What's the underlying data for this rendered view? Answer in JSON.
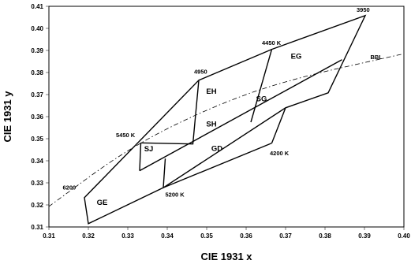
{
  "chart_data": {
    "type": "scatter",
    "title": "",
    "xlabel": "CIE 1931 x",
    "ylabel": "CIE 1931 y",
    "xlim": [
      0.31,
      0.4
    ],
    "ylim": [
      0.31,
      0.41
    ],
    "x_ticks": [
      "0.31",
      "0.32",
      "0.33",
      "0.34",
      "0.35",
      "0.36",
      "0.37",
      "0.38",
      "0.39",
      "0.40"
    ],
    "y_ticks": [
      "0.31",
      "0.32",
      "0.33",
      "0.34",
      "0.35",
      "0.36",
      "0.37",
      "0.38",
      "0.39",
      "0.40",
      "0.41"
    ],
    "grid": false,
    "series": [
      {
        "name": "BBL",
        "style": "dash-dot",
        "points": [
          [
            0.31,
            0.3193
          ],
          [
            0.33,
            0.3455
          ],
          [
            0.35,
            0.3635
          ],
          [
            0.37,
            0.3765
          ],
          [
            0.4,
            0.3885
          ]
        ]
      }
    ],
    "bins_outline": [
      {
        "points": [
          [
            0.319,
            0.3233
          ],
          [
            0.348,
            0.3765
          ],
          [
            0.3665,
            0.3905
          ],
          [
            0.3902,
            0.4058
          ],
          [
            0.3808,
            0.3708
          ],
          [
            0.37,
            0.364
          ],
          [
            0.339,
            0.3278
          ],
          [
            0.32,
            0.3115
          ]
        ]
      }
    ],
    "bin_dividers": [
      {
        "points": [
          [
            0.333,
            0.3355
          ],
          [
            0.3843,
            0.3858
          ]
        ]
      },
      {
        "points": [
          [
            0.3333,
            0.3481
          ],
          [
            0.3465,
            0.3476
          ],
          [
            0.348,
            0.3765
          ]
        ]
      },
      {
        "points": [
          [
            0.339,
            0.3278
          ],
          [
            0.3395,
            0.341
          ]
        ]
      },
      {
        "points": [
          [
            0.333,
            0.3355
          ],
          [
            0.3333,
            0.3481
          ]
        ]
      },
      {
        "points": [
          [
            0.3612,
            0.3575
          ],
          [
            0.3665,
            0.3905
          ]
        ]
      },
      {
        "points": [
          [
            0.3665,
            0.348
          ],
          [
            0.37,
            0.364
          ]
        ]
      },
      {
        "points": [
          [
            0.339,
            0.3278
          ],
          [
            0.3665,
            0.348
          ]
        ]
      }
    ],
    "annotations": [
      {
        "text": "3950",
        "x": 0.388,
        "y": 0.4075
      },
      {
        "text": "4450 K",
        "x": 0.364,
        "y": 0.3925
      },
      {
        "text": "4950",
        "x": 0.3468,
        "y": 0.3795
      },
      {
        "text": "5450 K",
        "x": 0.327,
        "y": 0.3508
      },
      {
        "text": "4200 K",
        "x": 0.366,
        "y": 0.3425
      },
      {
        "text": "5200 K",
        "x": 0.3395,
        "y": 0.3238
      },
      {
        "text": "6200",
        "x": 0.3135,
        "y": 0.327
      },
      {
        "text": "BBL",
        "x": 0.3915,
        "y": 0.386
      }
    ],
    "regions": [
      {
        "label": "EG",
        "x": 0.3727,
        "y": 0.3862
      },
      {
        "label": "EH",
        "x": 0.3512,
        "y": 0.3704
      },
      {
        "label": "SG",
        "x": 0.3639,
        "y": 0.367
      },
      {
        "label": "SH",
        "x": 0.3512,
        "y": 0.3556
      },
      {
        "label": "SJ",
        "x": 0.3353,
        "y": 0.3443
      },
      {
        "label": "GD",
        "x": 0.3526,
        "y": 0.3445
      },
      {
        "label": "GE",
        "x": 0.3235,
        "y": 0.32
      }
    ]
  }
}
